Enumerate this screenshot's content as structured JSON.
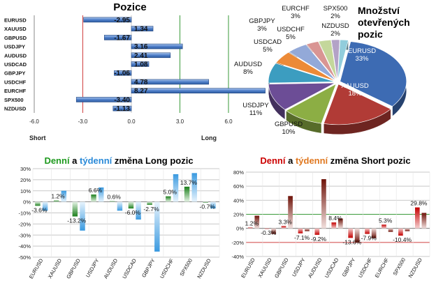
{
  "colors": {
    "long_green": "#1f9a1f",
    "mid_red": "#cc0000",
    "mid_orange": "#e07820",
    "long_bar": "#4f7fc9",
    "short_bar": "#b01515",
    "weekly_long": "#6fb6ec",
    "weekly_short": "#7a1b10"
  },
  "chart_data": [
    {
      "type": "bar",
      "orientation": "horizontal",
      "title": "Pozice",
      "categories": [
        "EURUSD",
        "XAUUSD",
        "GBPUSD",
        "USDJPY",
        "AUDUSD",
        "USDCAD",
        "GBPJPY",
        "USDCHF",
        "EURCHF",
        "SPX500",
        "NZDUSD"
      ],
      "values": [
        -2.95,
        1.34,
        -1.67,
        3.16,
        2.41,
        1.08,
        -1.06,
        4.78,
        8.27,
        -3.4,
        -1.13
      ],
      "value_labels": [
        "-2.95",
        "1.34",
        "-1.67",
        "3.16",
        "2.41",
        "1.08",
        "-1.06",
        "4.78",
        "8.27",
        "-3.40",
        "-1.13"
      ],
      "xlim": [
        -6.0,
        6.0
      ],
      "ticks": [
        -6.0,
        -3.0,
        0.0,
        3.0,
        6.0
      ],
      "tick_labels": [
        "-6.0",
        "-3.0",
        "0.0",
        "3.0",
        "6.0"
      ],
      "short_label": "Short",
      "long_label": "Long"
    },
    {
      "type": "pie",
      "title_lines": [
        "Množství",
        "otevřených",
        "pozic"
      ],
      "categories": [
        "EURUSD",
        "XAUUSD",
        "GBPUSD",
        "USDJPY",
        "AUDUSD",
        "USDCAD",
        "USDCHF",
        "GBPJPY",
        "EURCHF",
        "SPX500",
        "NZDUSD"
      ],
      "values": [
        33,
        18,
        10,
        11,
        8,
        5,
        5,
        3,
        3,
        2,
        2
      ],
      "value_labels": [
        "33%",
        "18%",
        "10%",
        "11%",
        "8%",
        "5%",
        "5%",
        "3%",
        "3%",
        "2%",
        "2%"
      ],
      "colors": [
        "#3d6bb3",
        "#b13b36",
        "#8cae44",
        "#6c4d96",
        "#3c9dc0",
        "#ec8a37",
        "#93a9d8",
        "#d99593",
        "#c4d79b",
        "#b3a2c7",
        "#92cddc"
      ]
    },
    {
      "type": "bar",
      "title_parts": [
        "Denní",
        " a ",
        "týdenní",
        " změna Long pozic"
      ],
      "categories": [
        "EURUSD",
        "XAUUSD",
        "GBPUSD",
        "USDJPY",
        "AUDUSD",
        "USDCAD",
        "GBPJPY",
        "USDCHF",
        "SPX500",
        "NZDUSD"
      ],
      "series": [
        {
          "values": [
            -3.6,
            1.2,
            -13.2,
            6.6,
            0.6,
            -6.0,
            -2.7,
            5.0,
            13.7,
            -0.7
          ]
        },
        {
          "values": [
            -8,
            10,
            -26,
            13,
            -8,
            -16,
            -45,
            25,
            26,
            -6
          ]
        }
      ],
      "value_labels": [
        "-3.6%",
        "1.2%",
        "-13.2%",
        "6.6%",
        "0.6%",
        "-6.0%",
        "-2.7%",
        "5.0%",
        "13.7%",
        "-0.7%"
      ],
      "ylim": [
        -50,
        30
      ],
      "ticks": [
        30,
        20,
        10,
        0,
        -10,
        -20,
        -30,
        -40,
        -50
      ],
      "tick_labels": [
        "30%",
        "20%",
        "10%",
        "0%",
        "-10%",
        "-20%",
        "-30%",
        "-40%",
        "-50%"
      ]
    },
    {
      "type": "bar",
      "title_parts": [
        "Denní",
        " a ",
        "týdenní",
        " změna Short pozic"
      ],
      "categories": [
        "EURUSD",
        "XAUUSD",
        "GBPUSD",
        "USDJPY",
        "AUDUSD",
        "USDCAD",
        "GBPJPY",
        "USDCHF",
        "EURCHF",
        "SPX500",
        "NZDUSD"
      ],
      "series": [
        {
          "values": [
            1.2,
            -0.3,
            3.3,
            -7.1,
            -9.2,
            8.4,
            -13.6,
            -7.9,
            5.3,
            -10.4,
            29.8
          ]
        },
        {
          "values": [
            18,
            -8,
            46,
            -4,
            70,
            14,
            -20,
            -14,
            -5,
            -4,
            22
          ]
        }
      ],
      "value_labels": [
        "1.2%",
        "-0.3%",
        "3.3%",
        "-7.1%",
        "-9.2%",
        "8.4%",
        "-13.6%",
        "-7.9%",
        "5.3%",
        "-10.4%",
        "29.8%"
      ],
      "ylim": [
        -40,
        80
      ],
      "ticks": [
        80,
        60,
        40,
        20,
        0,
        -20,
        -40
      ],
      "tick_labels": [
        "80%",
        "60%",
        "40%",
        "20%",
        "0%",
        "-20%",
        "-40%"
      ]
    }
  ]
}
